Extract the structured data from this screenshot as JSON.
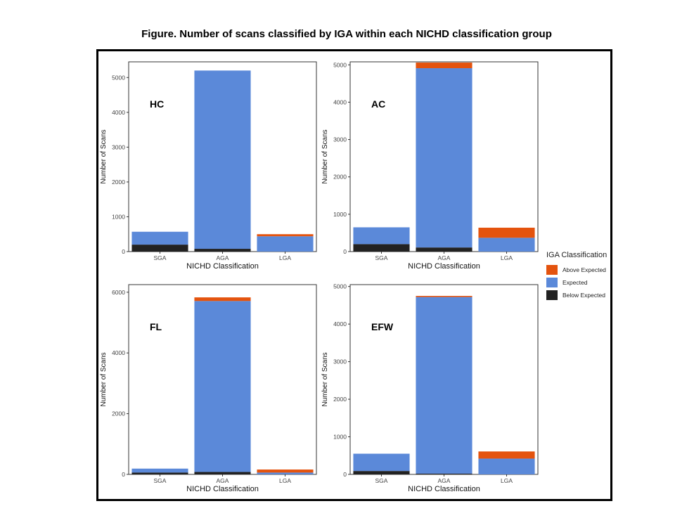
{
  "title": "Figure. Number of scans classified by IGA within each NICHD classification group",
  "legend": {
    "title": "IGA Classification",
    "items": [
      {
        "label": "Above Expected",
        "color": "#E4530E"
      },
      {
        "label": "Expected",
        "color": "#5B89D9"
      },
      {
        "label": "Below Expected",
        "color": "#222222"
      }
    ]
  },
  "chart_data": [
    {
      "type": "bar",
      "stacked": true,
      "panel_label": "HC",
      "categories": [
        "SGA",
        "AGA",
        "LGA"
      ],
      "series": [
        {
          "name": "Below Expected",
          "values": [
            200,
            80,
            0
          ]
        },
        {
          "name": "Expected",
          "values": [
            370,
            5120,
            440
          ]
        },
        {
          "name": "Above Expected",
          "values": [
            0,
            0,
            60
          ]
        }
      ],
      "xlabel": "NICHD Classification",
      "ylabel": "Number of Scans",
      "ylim": [
        0,
        5450
      ],
      "yticks": [
        0,
        1000,
        2000,
        3000,
        4000,
        5000
      ]
    },
    {
      "type": "bar",
      "stacked": true,
      "panel_label": "AC",
      "categories": [
        "SGA",
        "AGA",
        "LGA"
      ],
      "series": [
        {
          "name": "Below Expected",
          "values": [
            200,
            110,
            0
          ]
        },
        {
          "name": "Expected",
          "values": [
            450,
            4800,
            370
          ]
        },
        {
          "name": "Above Expected",
          "values": [
            0,
            150,
            270
          ]
        }
      ],
      "xlabel": "NICHD Classification",
      "ylabel": "Number of Scans",
      "ylim": [
        0,
        5080
      ],
      "yticks": [
        0,
        1000,
        2000,
        3000,
        4000,
        5000
      ]
    },
    {
      "type": "bar",
      "stacked": true,
      "panel_label": "FL",
      "categories": [
        "SGA",
        "AGA",
        "LGA"
      ],
      "series": [
        {
          "name": "Below Expected",
          "values": [
            60,
            80,
            0
          ]
        },
        {
          "name": "Expected",
          "values": [
            130,
            5630,
            60
          ]
        },
        {
          "name": "Above Expected",
          "values": [
            0,
            120,
            100
          ]
        }
      ],
      "xlabel": "NICHD Classification",
      "ylabel": "Number of Scans",
      "ylim": [
        0,
        6250
      ],
      "yticks": [
        0,
        2000,
        4000,
        6000
      ]
    },
    {
      "type": "bar",
      "stacked": true,
      "panel_label": "EFW",
      "categories": [
        "SGA",
        "AGA",
        "LGA"
      ],
      "series": [
        {
          "name": "Below Expected",
          "values": [
            90,
            20,
            0
          ]
        },
        {
          "name": "Expected",
          "values": [
            460,
            4700,
            420
          ]
        },
        {
          "name": "Above Expected",
          "values": [
            0,
            30,
            190
          ]
        }
      ],
      "xlabel": "NICHD Classification",
      "ylabel": "Number of Scans",
      "ylim": [
        0,
        5050
      ],
      "yticks": [
        0,
        1000,
        2000,
        3000,
        4000,
        5000
      ]
    }
  ]
}
